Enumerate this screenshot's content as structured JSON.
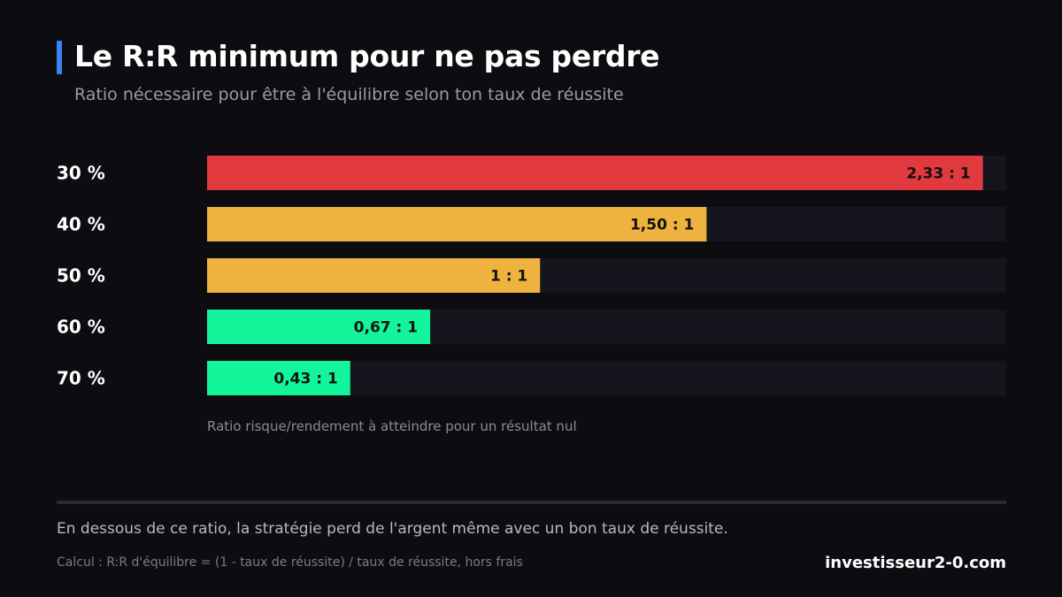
{
  "header": {
    "title": "Le R:R minimum pour ne pas perdre",
    "subtitle": "Ratio nécessaire pour être à l'équilibre selon ton taux de réussite"
  },
  "chart_data": {
    "type": "bar",
    "orientation": "horizontal",
    "categories": [
      "30 %",
      "40 %",
      "50 %",
      "60 %",
      "70 %"
    ],
    "values": [
      2.33,
      1.5,
      1,
      0.67,
      0.43
    ],
    "value_labels": [
      "2,33 : 1",
      "1,50 : 1",
      "1 : 1",
      "0,67 : 1",
      "0,43 : 1"
    ],
    "bar_colors": [
      "#e0393e",
      "#f0b23f",
      "#f0b23f",
      "#12f59a",
      "#12f59a"
    ],
    "track_color": "#14151d",
    "xlim": [
      0,
      2.4
    ],
    "grid": false,
    "xlabel": "Ratio risque/rendement à atteindre pour un résultat nul"
  },
  "footer": {
    "note": "En dessous de ce ratio, la stratégie perd de l'argent même avec un bon taux de réussite.",
    "formula": "Calcul : R:R d'équilibre = (1 - taux de réussite) / taux de réussite, hors frais",
    "brand": "investisseur2-0.com"
  }
}
